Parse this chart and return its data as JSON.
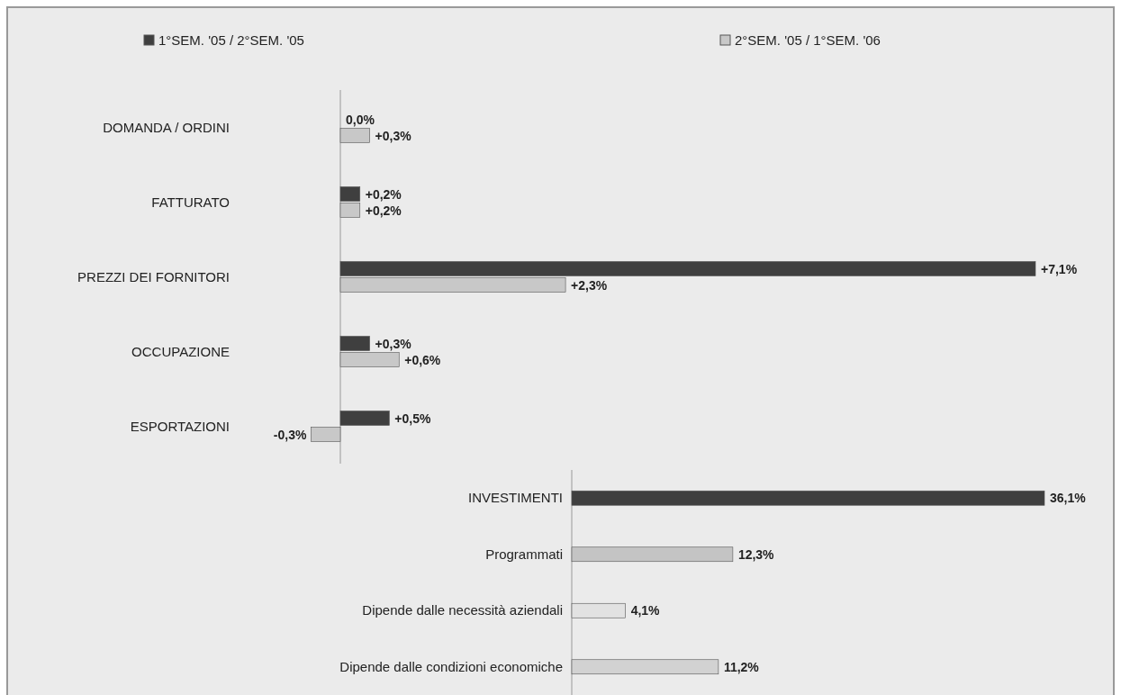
{
  "chart_data": [
    {
      "type": "bar",
      "orientation": "horizontal",
      "categories": [
        "DOMANDA / ORDINI",
        "FATTURATO",
        "PREZZI DEI FORNITORI",
        "OCCUPAZIONE",
        "ESPORTAZIONI"
      ],
      "series": [
        {
          "name": "1°SEM. '05 / 2°SEM. '05",
          "color": "#3f3f3f",
          "values": [
            0.0,
            0.2,
            7.1,
            0.3,
            0.5
          ],
          "value_labels": [
            "0,0%",
            "+0,2%",
            "+7,1%",
            "+0,3%",
            "+0,5%"
          ]
        },
        {
          "name": "2°SEM. '05 / 1°SEM. '06",
          "color": "#c8c8c8",
          "values": [
            0.3,
            0.2,
            2.3,
            0.6,
            -0.3
          ],
          "value_labels": [
            "+0,3%",
            "+0,2%",
            "+2,3%",
            "+0,6%",
            "-0,3%"
          ]
        }
      ],
      "tick_labels": "y",
      "legend": "top"
    },
    {
      "type": "bar",
      "orientation": "horizontal",
      "categories": [
        "INVESTIMENTI",
        "Programmati",
        "Dipende dalle necessità aziendali",
        "Dipende dalle condizioni economiche"
      ],
      "values": [
        36.1,
        12.3,
        4.1,
        11.2
      ],
      "colors": [
        "#3f3f3f",
        "#c4c4c4",
        "#e2e2e2",
        "#d2d2d2"
      ],
      "value_labels": [
        "36,1%",
        "12,3%",
        "4,1%",
        "11,2%"
      ],
      "tick_labels": "y",
      "legend": false
    }
  ]
}
